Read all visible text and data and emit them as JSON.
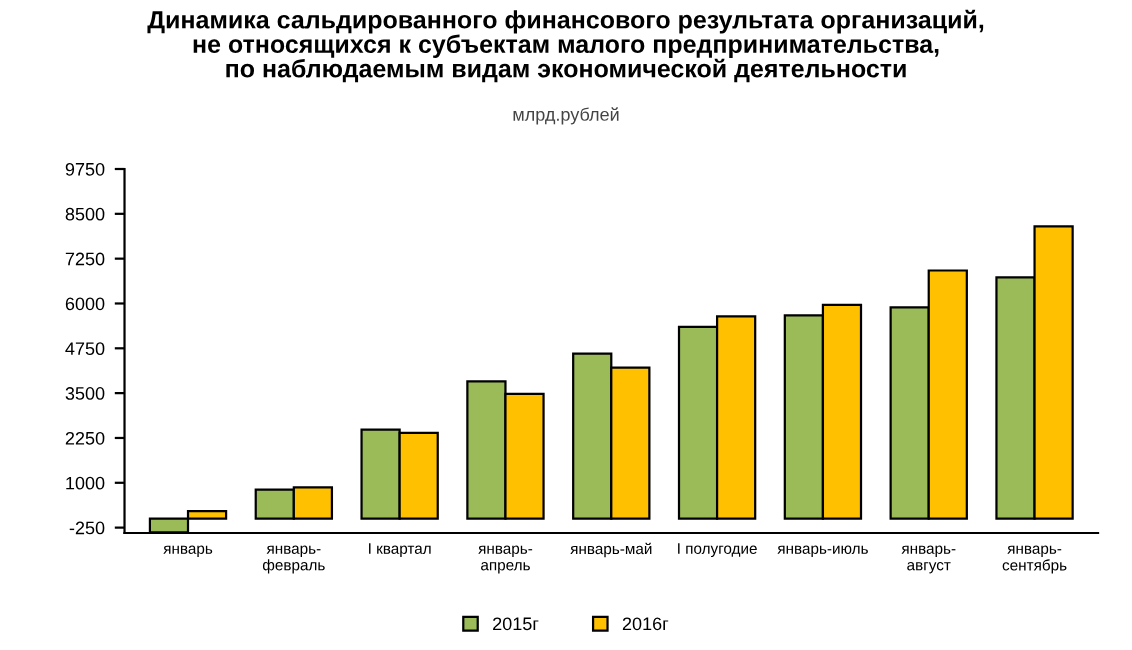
{
  "chart_data": {
    "type": "bar",
    "title": "Динамика сальдированного финансового результата организаций,\nне относящихся к субъектам малого предпринимательства,\nпо наблюдаемым видам экономической деятельности",
    "subtitle": "млрд.рублей",
    "categories": [
      "январь",
      "январь-\nфевраль",
      "I квартал",
      "январь-\nапрель",
      "январь-май",
      "I полугодие",
      "январь-июль",
      "январь-\nавгуст",
      "январь-\nсентябрь"
    ],
    "series": [
      {
        "name": "2015г",
        "color": "#9bbb59",
        "values": [
          -380,
          810,
          2480,
          3830,
          4600,
          5350,
          5670,
          5890,
          6730
        ]
      },
      {
        "name": "2016г",
        "color": "#ffc000",
        "values": [
          210,
          870,
          2390,
          3480,
          4210,
          5640,
          5960,
          6920,
          8150
        ]
      }
    ],
    "ylim": [
      -400,
      9750
    ],
    "yticks": [
      -250,
      1000,
      2250,
      3500,
      4750,
      6000,
      7250,
      8500,
      9750
    ],
    "legend": "bottom"
  }
}
